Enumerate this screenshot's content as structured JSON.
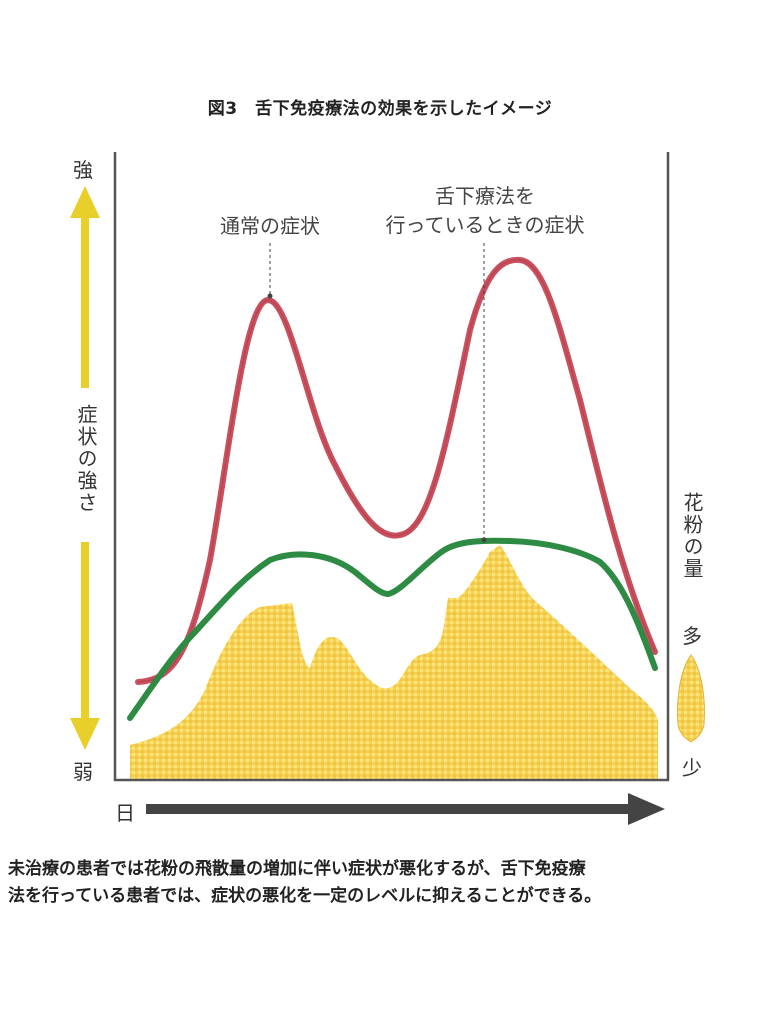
{
  "title": "図3　舌下免疫療法の効果を示したイメージ",
  "y_axis": {
    "top_label": "強",
    "bottom_label": "弱",
    "label": "症状の強さ"
  },
  "x_axis": {
    "label": "日"
  },
  "right_axis": {
    "label": "花粉の量",
    "top_label": "多",
    "bottom_label": "少"
  },
  "annotations": {
    "normal": "通常の症状",
    "treated_line1": "舌下療法を",
    "treated_line2": "行っているときの症状"
  },
  "caption": {
    "line1": "未治療の患者では花粉の飛散量の増加に伴い症状が悪化するが、舌下免疫療",
    "line2": "法を行っている患者では、症状の悪化を一定のレベルに抑えることができる。"
  },
  "colors": {
    "normal_curve": "#c9505e",
    "treated_curve": "#2e8b43",
    "pollen_fill": "#f2c53a",
    "arrow_yellow": "#e8cf2a",
    "axis": "#555555"
  },
  "chart_data": {
    "type": "line",
    "title": "図3　舌下免疫療法の効果を示したイメージ",
    "xlabel": "日",
    "ylabel": "症状の強さ",
    "y2label": "花粉の量",
    "x": [
      0,
      10,
      20,
      30,
      40,
      50,
      60,
      70,
      80,
      90,
      100
    ],
    "ylim": [
      0,
      100
    ],
    "series": [
      {
        "name": "通常の症状",
        "values": [
          12,
          20,
          80,
          55,
          42,
          52,
          75,
          88,
          70,
          35,
          12
        ]
      },
      {
        "name": "舌下療法を行っているときの症状",
        "values": [
          8,
          15,
          28,
          38,
          35,
          26,
          40,
          42,
          41,
          30,
          12
        ]
      },
      {
        "name": "花粉の量",
        "values": [
          5,
          12,
          30,
          26,
          18,
          14,
          28,
          42,
          30,
          15,
          5
        ]
      }
    ]
  }
}
